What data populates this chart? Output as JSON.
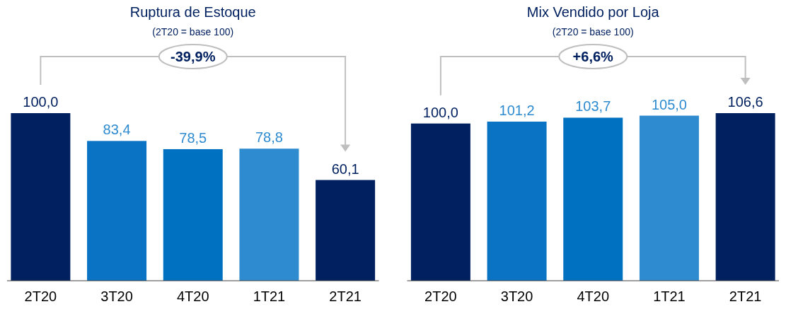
{
  "chart_data": [
    {
      "type": "bar",
      "title": "Ruptura de Estoque",
      "subtitle": "(2T20 = base 100)",
      "categories": [
        "2T20",
        "3T20",
        "4T20",
        "1T21",
        "2T21"
      ],
      "values": [
        100.0,
        83.4,
        78.5,
        78.8,
        60.1
      ],
      "colors": [
        "#002060",
        "#0a73c4",
        "#0070c0",
        "#2e8bd0",
        "#002060"
      ],
      "value_labels": [
        "100,0",
        "83,4",
        "78,5",
        "78,8",
        "60,1"
      ],
      "annotations": [
        "-39,9%"
      ]
    },
    {
      "type": "bar",
      "title": "Mix Vendido por Loja",
      "subtitle": "(2T20 = base 100)",
      "categories": [
        "2T20",
        "3T20",
        "4T20",
        "1T21",
        "2T21"
      ],
      "values": [
        100.0,
        101.2,
        103.7,
        105.0,
        106.6
      ],
      "colors": [
        "#002060",
        "#0a73c4",
        "#0070c0",
        "#2e8bd0",
        "#002060"
      ],
      "value_labels": [
        "100,0",
        "101,2",
        "103,7",
        "105,0",
        "106,6"
      ],
      "annotations": [
        "+6,6%"
      ]
    }
  ]
}
